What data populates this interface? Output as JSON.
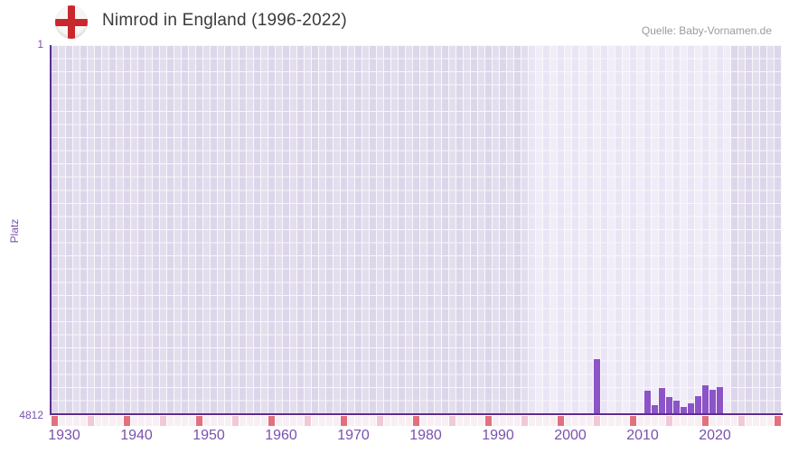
{
  "header": {
    "title": "Nimrod in England (1996-2022)",
    "flag_icon": "england-flag",
    "source": "Quelle: Baby-Vornamen.de"
  },
  "chart_data": {
    "type": "bar",
    "title": "Nimrod in England (1996-2022)",
    "source": "Quelle: Baby-Vornamen.de",
    "xlabel": "",
    "ylabel": "Platz",
    "y_axis": {
      "top_tick": "1",
      "bottom_tick": "4812",
      "min": 1,
      "max": 4812,
      "inverted": true
    },
    "x_domain": [
      1930,
      2031
    ],
    "active_years": [
      1996,
      2024
    ],
    "x_ticks": [
      "1930",
      "1940",
      "1950",
      "1960",
      "1970",
      "1980",
      "1990",
      "2000",
      "2010",
      "2020"
    ],
    "series": [
      {
        "name": "Platz",
        "points": [
          {
            "year": 2005,
            "rank": 4104
          },
          {
            "year": 2012,
            "rank": 4517
          },
          {
            "year": 2013,
            "rank": 4706
          },
          {
            "year": 2014,
            "rank": 4482
          },
          {
            "year": 2015,
            "rank": 4600
          },
          {
            "year": 2016,
            "rank": 4647
          },
          {
            "year": 2017,
            "rank": 4729
          },
          {
            "year": 2018,
            "rank": 4682
          },
          {
            "year": 2019,
            "rank": 4588
          },
          {
            "year": 2020,
            "rank": 4447
          },
          {
            "year": 2021,
            "rank": 4505
          },
          {
            "year": 2022,
            "rank": 4470
          }
        ]
      }
    ],
    "legend": null,
    "grid": "waffle-cells",
    "colors": {
      "bar": "#8c54c6",
      "axis_line": "#5b2d90",
      "tick_label": "#7a51ad",
      "grid_cell_outside": "#e3deee",
      "grid_cell_active": "#f1edf8",
      "grid_gap": "#f9f7fb",
      "strip_base": "#f8eff4",
      "strip_decade": "#e3707e",
      "strip_middecade": "#f0c8d6",
      "title_text": "#3b3b3b",
      "source_text": "#9b9b9b",
      "flag_cross": "#c9272e"
    }
  }
}
